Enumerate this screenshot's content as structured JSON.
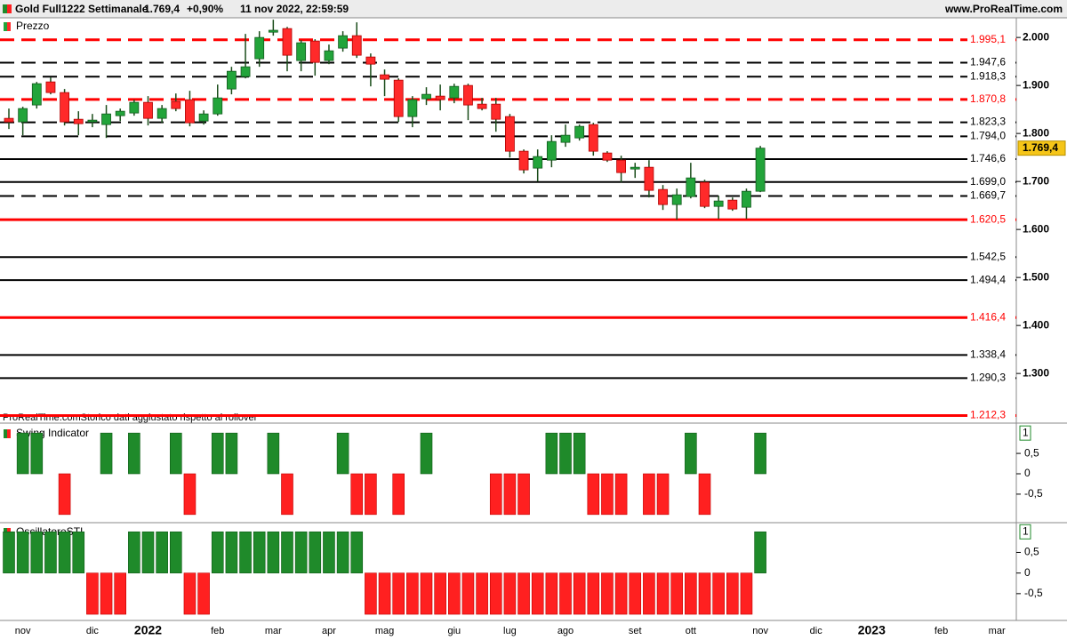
{
  "header": {
    "instrument": "Gold Full1222 Settimanale",
    "change": "+0,90%",
    "datetime": "11 nov 2022, 22:59:59",
    "site": "www.ProRealTime.com",
    "note": "ProRealTime.comStorico dati aggiustato rispetto al rollover"
  },
  "chart_data": [
    {
      "type": "candlestick",
      "title": "Prezzo",
      "colors": {
        "up": "#22a43a",
        "down": "#ff2a2a"
      },
      "ylim": [
        1204,
        2041
      ],
      "yticks": [
        {
          "value": 2000,
          "label": "2.000"
        },
        {
          "value": 1900,
          "label": "1.900"
        },
        {
          "value": 1800,
          "label": "1.800"
        },
        {
          "value": 1700,
          "label": "1.700"
        },
        {
          "value": 1600,
          "label": "1.600"
        },
        {
          "value": 1500,
          "label": "1.500"
        },
        {
          "value": 1400,
          "label": "1.400"
        },
        {
          "value": 1300,
          "label": "1.300"
        }
      ],
      "last": {
        "value": 1769.4,
        "label": "1.769,4"
      },
      "levels": [
        {
          "value": 1995.1,
          "label": "1.995,1",
          "color": "#ff0000",
          "dashed": true
        },
        {
          "value": 1947.6,
          "label": "1.947,6",
          "color": "#000000",
          "dashed": true
        },
        {
          "value": 1918.3,
          "label": "1.918,3",
          "color": "#000000",
          "dashed": true
        },
        {
          "value": 1870.8,
          "label": "1.870,8",
          "color": "#ff0000",
          "dashed": true
        },
        {
          "value": 1823.3,
          "label": "1.823,3",
          "color": "#000000",
          "dashed": true
        },
        {
          "value": 1794.0,
          "label": "1.794,0",
          "color": "#000000",
          "dashed": true
        },
        {
          "value": 1746.6,
          "label": "1.746,6",
          "color": "#000000",
          "dashed": false
        },
        {
          "value": 1699.0,
          "label": "1.699,0",
          "color": "#000000",
          "dashed": false
        },
        {
          "value": 1669.7,
          "label": "1.669,7",
          "color": "#000000",
          "dashed": true
        },
        {
          "value": 1620.5,
          "label": "1.620,5",
          "color": "#ff0000",
          "dashed": false
        },
        {
          "value": 1542.5,
          "label": "1.542,5",
          "color": "#000000",
          "dashed": false
        },
        {
          "value": 1494.4,
          "label": "1.494,4",
          "color": "#000000",
          "dashed": false
        },
        {
          "value": 1416.4,
          "label": "1.416,4",
          "color": "#ff0000",
          "dashed": false
        },
        {
          "value": 1338.4,
          "label": "1.338,4",
          "color": "#000000",
          "dashed": false
        },
        {
          "value": 1290.3,
          "label": "1.290,3",
          "color": "#000000",
          "dashed": false
        },
        {
          "value": 1212.3,
          "label": "1.212,3",
          "color": "#ff0000",
          "dashed": false
        }
      ],
      "open": [
        1831.5,
        1824.1,
        1859.3,
        1907.4,
        1885.2,
        1829.6,
        1824.1,
        1818.5,
        1837,
        1842.6,
        1864.8,
        1831.5,
        1866.7,
        1870.4,
        1825.9,
        1840.7,
        1892.6,
        1918.5,
        1955.6,
        2011,
        2018.5,
        1951.9,
        1992.6,
        1951.9,
        1977.8,
        2003.7,
        1959.3,
        1922.2,
        1911.1,
        1835.2,
        1872.2,
        1877.8,
        1874.1,
        1900,
        1861.1,
        1861.1,
        1835.2,
        1763,
        1727.8,
        1744.4,
        1781.5,
        1790.7,
        1818.5,
        1759.3,
        1744.4,
        1725.9,
        1729.6,
        1683.3,
        1651.9,
        1668.5,
        1698.1,
        1648.1,
        1661.1,
        1646.3,
        1679.6,
        null,
        null,
        null,
        null,
        null,
        null,
        null,
        null,
        null,
        null,
        null,
        null,
        null,
        null,
        null,
        null,
        null,
        null
      ],
      "high": [
        1851.9,
        1855.6,
        1907.4,
        1916.7,
        1892.6,
        1846.3,
        1840.7,
        1859.3,
        1851.9,
        1870.4,
        1877.8,
        1859.3,
        1883.3,
        1888.9,
        1848.1,
        1901.9,
        1938.9,
        2007.4,
        2013,
        2037,
        2022,
        1994.4,
        1996.3,
        1985.2,
        2013,
        2031.5,
        1966.7,
        1933.3,
        1914.8,
        1877.8,
        1896.3,
        1901.9,
        1903.7,
        1903.7,
        1874.1,
        1874.1,
        1840.7,
        1766.7,
        1766.7,
        1796.3,
        1818.5,
        1818.5,
        1822.2,
        1763,
        1753.7,
        1738.9,
        1744.4,
        1692.6,
        1685.2,
        1738.9,
        1703.7,
        1670.4,
        1666.7,
        1685.2,
        1774.1,
        null,
        null,
        null,
        null,
        null,
        null,
        null,
        null,
        null,
        null,
        null,
        null,
        null,
        null,
        null,
        null,
        null,
        null
      ],
      "low": [
        1809.3,
        1796.3,
        1851.9,
        1881.5,
        1816.7,
        1796.3,
        1813,
        1790.7,
        1825.9,
        1837,
        1816.7,
        1822.2,
        1846.3,
        1814.8,
        1818.5,
        1837,
        1881.5,
        1914.8,
        1938.9,
        2003.7,
        1929.6,
        1929.6,
        1920.4,
        1944.4,
        1970.4,
        1957.4,
        1898.1,
        1877.8,
        1824.1,
        1813,
        1859.3,
        1848.1,
        1863,
        1827.8,
        1848.1,
        1803.7,
        1750,
        1716.7,
        1700,
        1729.6,
        1772.2,
        1785.2,
        1753.7,
        1740.7,
        1698.1,
        1707.4,
        1666.7,
        1640.7,
        1620.4,
        1664.8,
        1644.4,
        1622.2,
        1638.9,
        1622.2,
        1677.8,
        null,
        null,
        null,
        null,
        null,
        null,
        null,
        null,
        null,
        null,
        null,
        null,
        null,
        null,
        null,
        null,
        null,
        null
      ],
      "close": [
        1824.1,
        1851.9,
        1903.7,
        1885.2,
        1824.1,
        1820.4,
        1827.8,
        1840.7,
        1846.3,
        1864.8,
        1831.5,
        1851.9,
        1851.9,
        1822.2,
        1840.7,
        1874.1,
        1929.6,
        1938.9,
        2000,
        2015,
        1963,
        1988.9,
        1948.1,
        1972.2,
        2003.7,
        1963,
        1944.4,
        1913,
        1835.2,
        1870.4,
        1881.5,
        1870.4,
        1898.1,
        1859.3,
        1851.9,
        1829.6,
        1763,
        1724.1,
        1751.9,
        1783.3,
        1796.3,
        1814.8,
        1763,
        1744.4,
        1718.5,
        1729.6,
        1681.5,
        1651.9,
        1672.2,
        1707.4,
        1648.1,
        1659.3,
        1642.6,
        1679.6,
        1769.4,
        null,
        null,
        null,
        null,
        null,
        null,
        null,
        null,
        null,
        null,
        null,
        null,
        null,
        null,
        null,
        null,
        null,
        null
      ]
    },
    {
      "type": "bar",
      "title": "Swing Indicator",
      "colors": {
        "up": "#1f8a2a",
        "down": "#ff2020"
      },
      "ylim": [
        -1.2,
        1.2
      ],
      "yticks": [
        {
          "value": 0.5,
          "label": "0,5"
        },
        0,
        {
          "value": -0.5,
          "label": "-0,5"
        }
      ],
      "values": [
        0,
        1,
        1,
        0,
        -1,
        0,
        0,
        1,
        0,
        1,
        0,
        0,
        1,
        -1,
        0,
        1,
        1,
        0,
        0,
        1,
        -1,
        0,
        0,
        0,
        1,
        -1,
        -1,
        0,
        -1,
        0,
        1,
        0,
        0,
        0,
        0,
        -1,
        -1,
        -1,
        0,
        1,
        1,
        1,
        -1,
        -1,
        -1,
        0,
        -1,
        -1,
        0,
        1,
        -1,
        0,
        0,
        0,
        1,
        null,
        null,
        null,
        null,
        null,
        null,
        null,
        null,
        null,
        null,
        null,
        null,
        null,
        null,
        null,
        null,
        null,
        null
      ]
    },
    {
      "type": "bar",
      "title": "OscillatoreSTI",
      "colors": {
        "up": "#1f8a2a",
        "down": "#ff2020"
      },
      "ylim": [
        -1.15,
        1.2
      ],
      "yticks": [
        {
          "value": 0.5,
          "label": "0,5"
        },
        0,
        {
          "value": -0.5,
          "label": "-0,5"
        }
      ],
      "values": [
        1,
        1,
        1,
        1,
        1,
        1,
        -1,
        -1,
        -1,
        1,
        1,
        1,
        1,
        -1,
        -1,
        1,
        1,
        1,
        1,
        1,
        1,
        1,
        1,
        1,
        1,
        1,
        -1,
        -1,
        -1,
        -1,
        -1,
        -1,
        -1,
        -1,
        -1,
        -1,
        -1,
        -1,
        -1,
        -1,
        -1,
        -1,
        -1,
        -1,
        -1,
        -1,
        -1,
        -1,
        -1,
        -1,
        -1,
        -1,
        -1,
        -1,
        1,
        null,
        null,
        null,
        null,
        null,
        null,
        null,
        null,
        null,
        null,
        null,
        null,
        null,
        null,
        null,
        null,
        null,
        null
      ],
      "categories": [
        null,
        "nov",
        null,
        null,
        null,
        null,
        "dic",
        null,
        null,
        null,
        "2022",
        null,
        null,
        null,
        null,
        "feb",
        null,
        null,
        null,
        "mar",
        null,
        null,
        null,
        "apr",
        null,
        null,
        null,
        "mag",
        null,
        null,
        null,
        null,
        "giu",
        null,
        null,
        null,
        "lug",
        null,
        null,
        null,
        "ago",
        null,
        null,
        null,
        null,
        "set",
        null,
        null,
        null,
        "ott",
        null,
        null,
        null,
        null,
        "nov",
        null,
        null,
        null,
        "dic",
        null,
        null,
        null,
        "2023",
        null,
        null,
        null,
        null,
        "feb",
        null,
        null,
        null,
        "mar",
        null
      ]
    }
  ]
}
